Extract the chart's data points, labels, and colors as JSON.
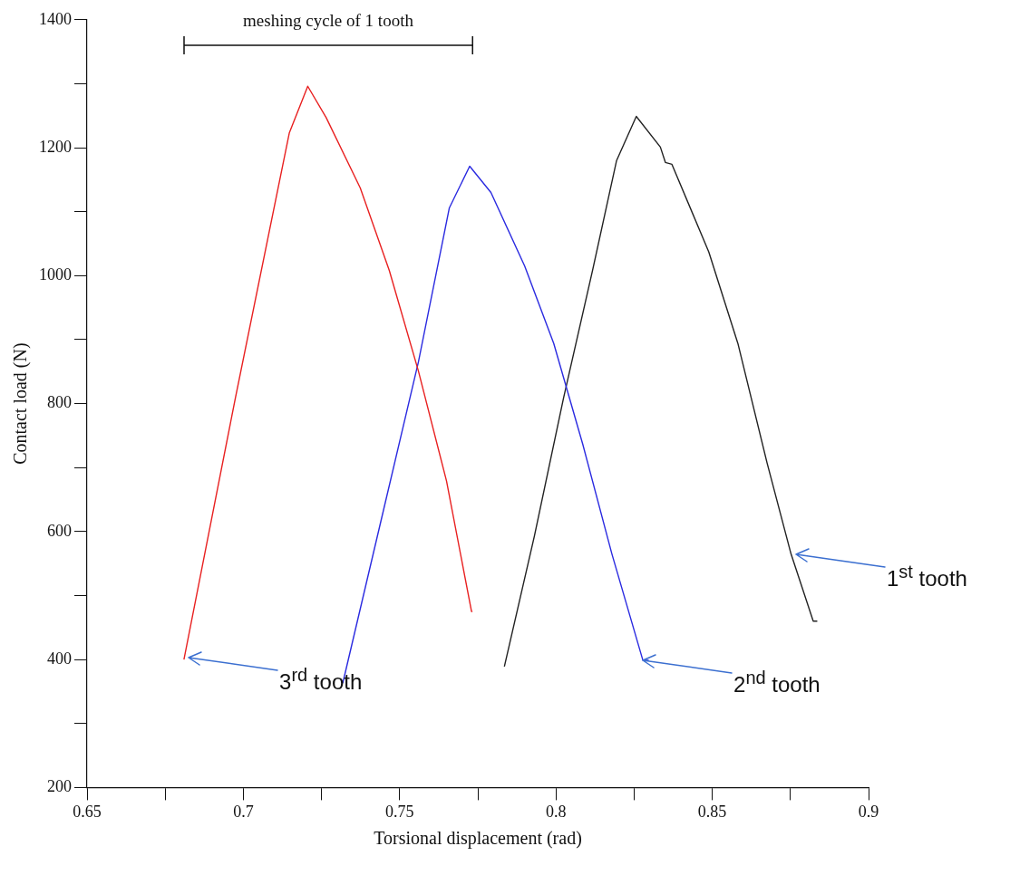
{
  "chart_data": {
    "type": "line",
    "xlabel": "Torsional displacement (rad)",
    "ylabel": "Contact load (N)",
    "xlim": [
      0.65,
      0.9
    ],
    "xticks": [
      0.65,
      {
        "value": 0.675,
        "label": null
      },
      0.7,
      {
        "value": 0.725,
        "label": null
      },
      0.75,
      {
        "value": 0.775,
        "label": null
      },
      0.8,
      {
        "value": 0.825,
        "label": null
      },
      0.85,
      {
        "value": 0.875,
        "label": null
      },
      0.9
    ],
    "ylim": [
      200,
      1400
    ],
    "yticks": [
      200,
      {
        "value": 300,
        "label": null
      },
      400,
      {
        "value": 500,
        "label": null
      },
      600,
      {
        "value": 700,
        "label": null
      },
      800,
      {
        "value": 900,
        "label": null
      },
      1000,
      {
        "value": 1100,
        "label": null
      },
      1200,
      {
        "value": 1300,
        "label": null
      },
      1400
    ],
    "grid": false,
    "legend": false,
    "marker": "none",
    "line_style": "solid",
    "series": [
      {
        "color": "#e82020",
        "x": [
          0.681,
          0.6975,
          0.7147,
          0.7206,
          0.7265,
          0.7374,
          0.7467,
          0.756,
          0.765,
          0.773,
          0.7733
        ],
        "values": [
          400,
          810,
          1223,
          1296,
          1247,
          1137,
          1008,
          851,
          679,
          475,
          475
        ]
      },
      {
        "color": "#2a2ae0",
        "x": [
          0.7318,
          0.7436,
          0.756,
          0.7659,
          0.7724,
          0.7792,
          0.79,
          0.7993,
          0.8086,
          0.8179,
          0.8278,
          0.8297
        ],
        "values": [
          363,
          608,
          865,
          1106,
          1171,
          1130,
          1015,
          894,
          736,
          565,
          399,
          399
        ]
      },
      {
        "color": "#222222",
        "x": [
          0.7835,
          0.7931,
          0.8024,
          0.8117,
          0.8194,
          0.8257,
          0.8334,
          0.835,
          0.8371,
          0.8489,
          0.8582,
          0.8675,
          0.8752,
          0.8823,
          0.8836
        ],
        "values": [
          389,
          593,
          808,
          1008,
          1180,
          1249,
          1201,
          1177,
          1174,
          1037,
          894,
          708,
          565,
          460,
          460
        ]
      }
    ],
    "annotations": [
      "meshing cycle of 1 tooth",
      {
        "text": "1$^{st}$ tooth",
        "x": 0.8768,
        "y": 565
      },
      {
        "text": "2$^{nd}$ tooth",
        "x": 0.8278,
        "y": 399
      },
      {
        "text": "3$^{rd}$ tooth",
        "x": 0.6825,
        "y": 403
      }
    ]
  }
}
